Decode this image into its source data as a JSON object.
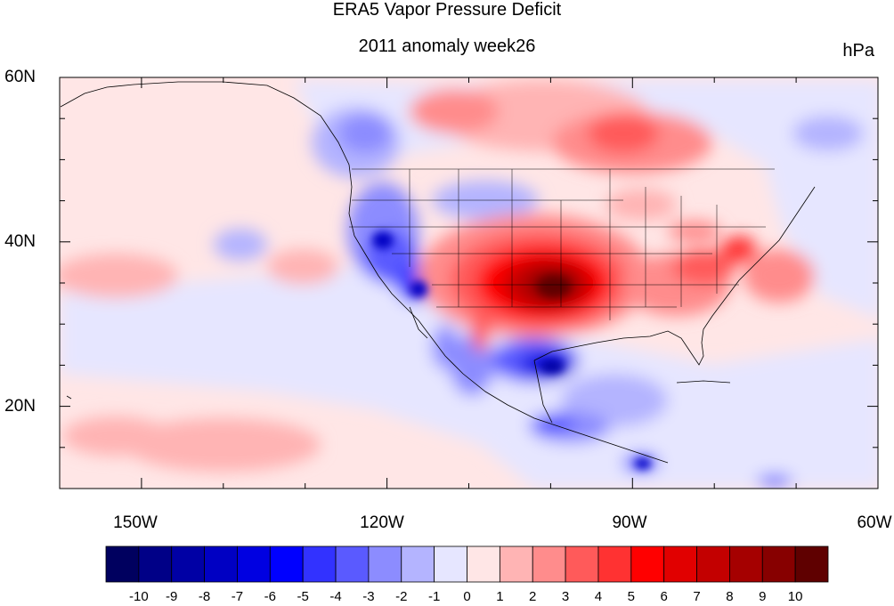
{
  "header": {
    "title": "ERA5 Vapor Pressure Deficit",
    "subtitle": "2011 anomaly week26",
    "units": "hPa"
  },
  "map": {
    "projection": "cylindrical equidistant",
    "extent": {
      "lon_min": -160,
      "lon_max": -60,
      "lat_min": 10,
      "lat_max": 60
    },
    "lat_ticks": [
      "60N",
      "40N",
      "20N"
    ],
    "lon_ticks": [
      "150W",
      "120W",
      "90W",
      "60W"
    ],
    "outlines": "coastlines and US state boundaries"
  },
  "colorbar": {
    "labels": [
      "-10",
      "-9",
      "-8",
      "-7",
      "-6",
      "-5",
      "-4",
      "-3",
      "-2",
      "-1",
      "0",
      "1",
      "2",
      "3",
      "4",
      "5",
      "6",
      "7",
      "8",
      "9",
      "10"
    ],
    "colors": [
      "#00005f",
      "#000087",
      "#0000a5",
      "#0000c3",
      "#0000e1",
      "#0000ff",
      "#3232ff",
      "#5a5aff",
      "#8c8cff",
      "#b4b4ff",
      "#e6e6ff",
      "#ffe6e6",
      "#ffb4b4",
      "#ff8c8c",
      "#ff5a5a",
      "#ff3232",
      "#ff0000",
      "#e10000",
      "#c30000",
      "#a50000",
      "#870000",
      "#5f0000"
    ]
  },
  "anomaly_regions": [
    {
      "name": "southern-plains-high-vpd",
      "lon": -100,
      "lat": 34,
      "peak": 10
    },
    {
      "name": "canada-high-vpd",
      "lon": -92,
      "lat": 50,
      "peak": 6
    },
    {
      "name": "mid-atlantic-high-vpd",
      "lon": -77,
      "lat": 37,
      "peak": 7
    },
    {
      "name": "texas-coast-low-vpd",
      "lon": -98,
      "lat": 26,
      "peak": -8
    },
    {
      "name": "california-low-vpd",
      "lon": -118,
      "lat": 37,
      "peak": -8
    },
    {
      "name": "southern-mexico-low-vpd",
      "lon": -97,
      "lat": 16,
      "peak": -6
    }
  ]
}
